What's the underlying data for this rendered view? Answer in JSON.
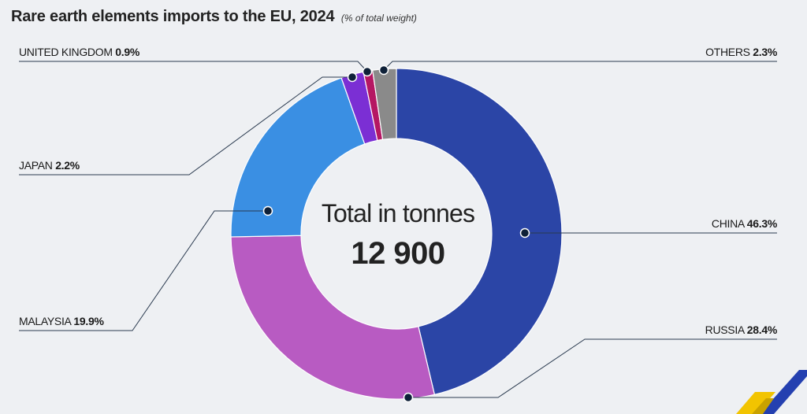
{
  "title": "Rare earth elements imports to the EU, 2024",
  "subtitle": "(% of total weight)",
  "center": {
    "caption": "Total in tonnes",
    "value": "12 900"
  },
  "colors": {
    "china": "#2b45a6",
    "russia": "#b85bc2",
    "malaysia": "#3a8fe3",
    "japan": "#7b2fd4",
    "united_kingdom": "#b51763",
    "others": "#8a8a8a",
    "leader": "#2a3a4f",
    "dot": "#0e2038"
  },
  "labels": {
    "united_kingdom": {
      "name": "UNITED KINGDOM",
      "pct": "0.9%"
    },
    "others": {
      "name": "OTHERS",
      "pct": "2.3%"
    },
    "japan": {
      "name": "JAPAN",
      "pct": "2.2%"
    },
    "china": {
      "name": "CHINA",
      "pct": "46.3%"
    },
    "malaysia": {
      "name": "MALAYSIA",
      "pct": "19.9%"
    },
    "russia": {
      "name": "RUSSIA",
      "pct": "28.4%"
    }
  },
  "chart_data": {
    "type": "pie",
    "title": "Rare earth elements imports to the EU, 2024",
    "subtitle": "(% of total weight)",
    "unit": "% of total weight",
    "categories": [
      "CHINA",
      "RUSSIA",
      "MALAYSIA",
      "JAPAN",
      "UNITED KINGDOM",
      "OTHERS"
    ],
    "values": [
      46.3,
      28.4,
      19.9,
      2.2,
      0.9,
      2.3
    ],
    "center_label": "Total in tonnes",
    "center_value": "12 900"
  }
}
